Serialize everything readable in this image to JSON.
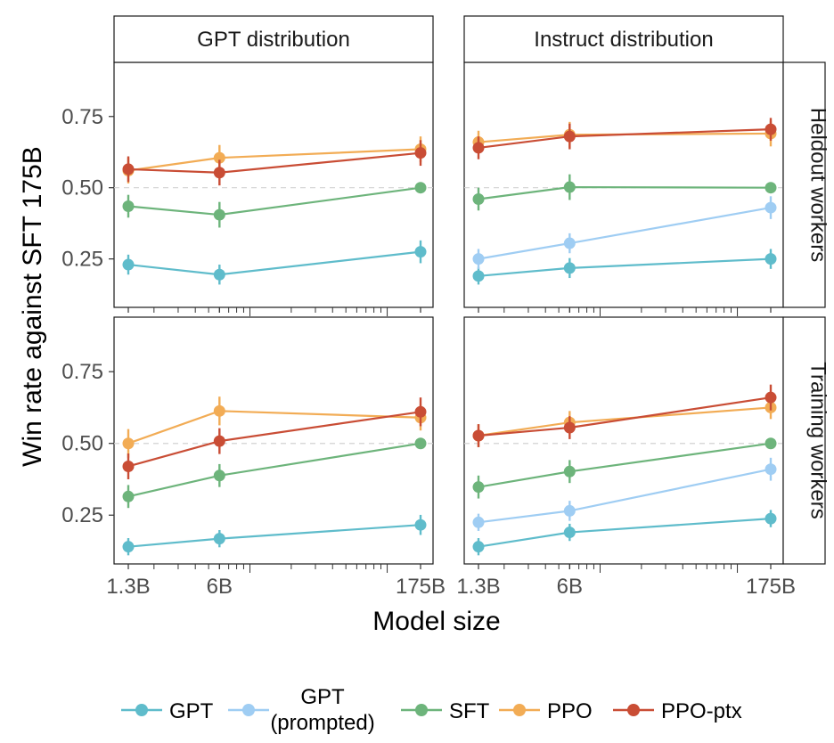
{
  "chart_data": {
    "type": "line",
    "ylabel": "Win rate against SFT 175B",
    "xlabel": "Model size",
    "x_scale": "log",
    "x_values": [
      1.3,
      6,
      175
    ],
    "x_tick_labels": [
      "1.3B",
      "6B",
      "175B"
    ],
    "y_ticks": [
      0.25,
      0.5,
      0.75
    ],
    "y_tick_labels": [
      "0.25",
      "0.50",
      "0.75"
    ],
    "ylim": [
      0.08,
      0.94
    ],
    "reference_line": 0.5,
    "columns": [
      "GPT distribution",
      "Instruct distribution"
    ],
    "rows": [
      "Heldout workers",
      "Training workers"
    ],
    "colors": {
      "GPT": "#5fbccb",
      "GPT (prompted)": "#9fcdf3",
      "SFT": "#6db47b",
      "PPO": "#f2ac55",
      "PPO-ptx": "#c94d35"
    },
    "legend": [
      {
        "key": "GPT",
        "lines": [
          "GPT"
        ]
      },
      {
        "key": "GPT (prompted)",
        "lines": [
          "GPT",
          "(prompted)"
        ]
      },
      {
        "key": "SFT",
        "lines": [
          "SFT"
        ]
      },
      {
        "key": "PPO",
        "lines": [
          "PPO"
        ]
      },
      {
        "key": "PPO-ptx",
        "lines": [
          "PPO-ptx"
        ]
      }
    ],
    "legend_position": "bottom",
    "panels": [
      {
        "column": "GPT distribution",
        "row": "Heldout workers",
        "series": [
          {
            "name": "GPT",
            "values": [
              0.23,
              0.195,
              0.275
            ],
            "err": [
              0.035,
              0.035,
              0.04
            ]
          },
          {
            "name": "SFT",
            "values": [
              0.435,
              0.405,
              0.5
            ],
            "err": [
              0.04,
              0.045,
              0.0
            ]
          },
          {
            "name": "PPO",
            "values": [
              0.56,
              0.605,
              0.635
            ],
            "err": [
              0.045,
              0.045,
              0.045
            ]
          },
          {
            "name": "PPO-ptx",
            "values": [
              0.565,
              0.553,
              0.622
            ],
            "err": [
              0.045,
              0.045,
              0.045
            ]
          }
        ]
      },
      {
        "column": "Instruct distribution",
        "row": "Heldout workers",
        "series": [
          {
            "name": "GPT",
            "values": [
              0.19,
              0.218,
              0.25
            ],
            "err": [
              0.03,
              0.035,
              0.035
            ]
          },
          {
            "name": "GPT (prompted)",
            "values": [
              0.25,
              0.305,
              0.43
            ],
            "err": [
              0.035,
              0.035,
              0.04
            ]
          },
          {
            "name": "SFT",
            "values": [
              0.46,
              0.502,
              0.5
            ],
            "err": [
              0.04,
              0.045,
              0.0
            ]
          },
          {
            "name": "PPO",
            "values": [
              0.66,
              0.686,
              0.69
            ],
            "err": [
              0.04,
              0.045,
              0.045
            ]
          },
          {
            "name": "PPO-ptx",
            "values": [
              0.64,
              0.68,
              0.705
            ],
            "err": [
              0.04,
              0.045,
              0.04
            ]
          }
        ]
      },
      {
        "column": "GPT distribution",
        "row": "Training workers",
        "series": [
          {
            "name": "GPT",
            "values": [
              0.14,
              0.168,
              0.216
            ],
            "err": [
              0.03,
              0.03,
              0.035
            ]
          },
          {
            "name": "SFT",
            "values": [
              0.315,
              0.388,
              0.5
            ],
            "err": [
              0.04,
              0.04,
              0.0
            ]
          },
          {
            "name": "PPO",
            "values": [
              0.5,
              0.613,
              0.59
            ],
            "err": [
              0.05,
              0.05,
              0.045
            ]
          },
          {
            "name": "PPO-ptx",
            "values": [
              0.42,
              0.508,
              0.61
            ],
            "err": [
              0.045,
              0.045,
              0.05
            ]
          }
        ]
      },
      {
        "column": "Instruct distribution",
        "row": "Training workers",
        "series": [
          {
            "name": "GPT",
            "values": [
              0.14,
              0.19,
              0.238
            ],
            "err": [
              0.03,
              0.03,
              0.03
            ]
          },
          {
            "name": "GPT (prompted)",
            "values": [
              0.225,
              0.265,
              0.41
            ],
            "err": [
              0.03,
              0.035,
              0.04
            ]
          },
          {
            "name": "SFT",
            "values": [
              0.348,
              0.402,
              0.5
            ],
            "err": [
              0.04,
              0.04,
              0.0
            ]
          },
          {
            "name": "PPO",
            "values": [
              0.527,
              0.573,
              0.625
            ],
            "err": [
              0.04,
              0.04,
              0.04
            ]
          },
          {
            "name": "PPO-ptx",
            "values": [
              0.527,
              0.555,
              0.66
            ],
            "err": [
              0.04,
              0.04,
              0.045
            ]
          }
        ]
      }
    ]
  }
}
